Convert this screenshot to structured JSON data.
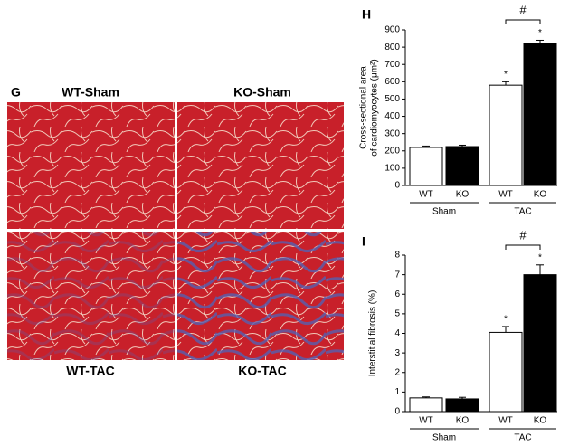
{
  "panel_g": {
    "label": "G",
    "images": [
      {
        "label": "WT-Sham"
      },
      {
        "label": "KO-Sham"
      },
      {
        "label": "WT-TAC"
      },
      {
        "label": "KO-TAC"
      }
    ]
  },
  "chart_data": [
    {
      "type": "bar",
      "panel": "H",
      "ylabel": [
        "Cross-sectional area",
        "of cardiomyocytes (μm²)"
      ],
      "categories": [
        "WT",
        "KO",
        "WT",
        "KO"
      ],
      "groups": [
        "Sham",
        "TAC"
      ],
      "values": [
        220,
        225,
        580,
        820
      ],
      "errors": [
        8,
        8,
        20,
        20
      ],
      "colors": [
        "#ffffff",
        "#000000",
        "#ffffff",
        "#000000"
      ],
      "significance": [
        null,
        null,
        "*",
        "*"
      ],
      "bracket": "#",
      "ylim": [
        0,
        900
      ],
      "yticks": [
        0,
        100,
        200,
        300,
        400,
        500,
        600,
        700,
        800,
        900
      ]
    },
    {
      "type": "bar",
      "panel": "I",
      "ylabel": [
        "Interstitial fibrosis (%)"
      ],
      "categories": [
        "WT",
        "KO",
        "WT",
        "KO"
      ],
      "groups": [
        "Sham",
        "TAC"
      ],
      "values": [
        0.7,
        0.65,
        4.05,
        7.0
      ],
      "errors": [
        0.05,
        0.08,
        0.3,
        0.5
      ],
      "colors": [
        "#ffffff",
        "#000000",
        "#ffffff",
        "#000000"
      ],
      "significance": [
        null,
        null,
        "*",
        "*"
      ],
      "bracket": "#",
      "ylim": [
        0,
        8
      ],
      "yticks": [
        0,
        1,
        2,
        3,
        4,
        5,
        6,
        7,
        8
      ]
    }
  ]
}
